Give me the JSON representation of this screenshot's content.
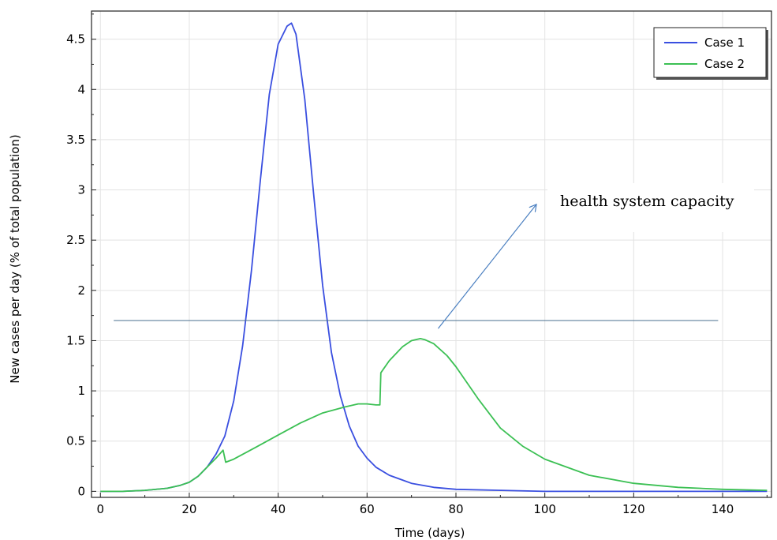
{
  "chart_data": {
    "type": "line",
    "xlabel": "Time (days)",
    "ylabel": "New cases per day (% of total population)",
    "xlim": [
      -2,
      151
    ],
    "ylim": [
      -0.06,
      4.78
    ],
    "xticks": [
      0,
      20,
      40,
      60,
      80,
      100,
      120,
      140
    ],
    "yticks": [
      0,
      0.5,
      1,
      1.5,
      2,
      2.5,
      3,
      3.5,
      4,
      4.5
    ],
    "grid": true,
    "legend_position": "top-right",
    "series": [
      {
        "name": "Case 1",
        "color": "#3a4fe0",
        "x": [
          0,
          5,
          10,
          15,
          18,
          20,
          22,
          24,
          26,
          28,
          30,
          32,
          34,
          36,
          38,
          40,
          42,
          43,
          44,
          46,
          48,
          50,
          52,
          54,
          56,
          58,
          60,
          62,
          65,
          70,
          75,
          80,
          90,
          100,
          110,
          120,
          130,
          140,
          150
        ],
        "y": [
          0.0,
          0.0,
          0.01,
          0.03,
          0.06,
          0.09,
          0.15,
          0.24,
          0.37,
          0.55,
          0.9,
          1.45,
          2.2,
          3.1,
          3.95,
          4.45,
          4.63,
          4.66,
          4.55,
          3.9,
          2.95,
          2.05,
          1.38,
          0.95,
          0.65,
          0.45,
          0.33,
          0.24,
          0.16,
          0.08,
          0.04,
          0.02,
          0.01,
          0.0,
          0.0,
          0.0,
          0.0,
          0.0,
          0.0
        ]
      },
      {
        "name": "Case 2",
        "color": "#3cc054",
        "x": [
          0,
          5,
          10,
          15,
          18,
          20,
          22,
          24,
          26,
          27.6,
          28.2,
          30,
          35,
          40,
          45,
          50,
          55,
          58,
          60,
          62,
          62.9,
          63.1,
          65,
          68,
          70,
          72,
          73,
          75,
          78,
          80,
          85,
          90,
          95,
          100,
          110,
          120,
          130,
          140,
          150
        ],
        "y": [
          0.0,
          0.0,
          0.01,
          0.03,
          0.06,
          0.09,
          0.15,
          0.24,
          0.33,
          0.41,
          0.29,
          0.32,
          0.44,
          0.56,
          0.68,
          0.78,
          0.84,
          0.87,
          0.87,
          0.86,
          0.86,
          1.18,
          1.3,
          1.44,
          1.5,
          1.52,
          1.51,
          1.47,
          1.35,
          1.24,
          0.92,
          0.63,
          0.45,
          0.32,
          0.16,
          0.08,
          0.04,
          0.02,
          0.01
        ]
      }
    ],
    "reference_line": {
      "y": 1.7,
      "x_from": 3,
      "x_to": 139,
      "color": "#4a6f8f"
    },
    "annotation": {
      "text": "health system capacity",
      "arrow_from": [
        76,
        1.62
      ],
      "arrow_to": [
        98,
        2.85
      ],
      "color": "#4a7fc0"
    }
  }
}
